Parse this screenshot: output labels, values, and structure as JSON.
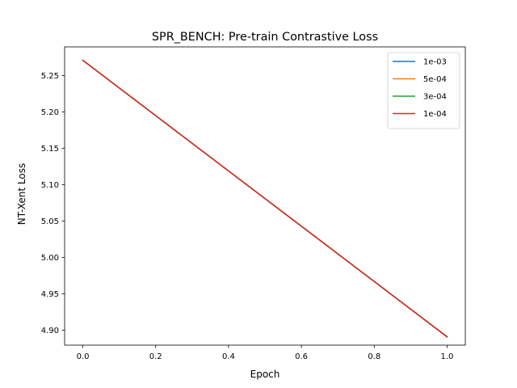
{
  "chart_data": {
    "type": "line",
    "title": "SPR_BENCH: Pre-train Contrastive Loss",
    "xlabel": "Epoch",
    "ylabel": "NT-Xent Loss",
    "xlim": [
      -0.05,
      1.05
    ],
    "ylim": [
      4.8795,
      5.2895
    ],
    "xticks": [
      0.0,
      0.2,
      0.4,
      0.6,
      0.8,
      1.0
    ],
    "xtick_labels": [
      "0.0",
      "0.2",
      "0.4",
      "0.6",
      "0.8",
      "1.0"
    ],
    "yticks": [
      4.9,
      4.95,
      5.0,
      5.05,
      5.1,
      5.15,
      5.2,
      5.25
    ],
    "ytick_labels": [
      "4.90",
      "4.95",
      "5.00",
      "5.05",
      "5.10",
      "5.15",
      "5.20",
      "5.25"
    ],
    "grid": false,
    "legend_position": "top-right",
    "series": [
      {
        "name": "1e-03",
        "color": "#1f77b4",
        "x": [
          0,
          1
        ],
        "y": [
          5.271,
          4.891
        ]
      },
      {
        "name": "5e-04",
        "color": "#ff7f0e",
        "x": [
          0,
          1
        ],
        "y": [
          5.271,
          4.891
        ]
      },
      {
        "name": "3e-04",
        "color": "#2ca02c",
        "x": [
          0,
          1
        ],
        "y": [
          5.271,
          4.891
        ]
      },
      {
        "name": "1e-04",
        "color": "#d62728",
        "x": [
          0,
          1
        ],
        "y": [
          5.271,
          4.891
        ]
      }
    ]
  }
}
